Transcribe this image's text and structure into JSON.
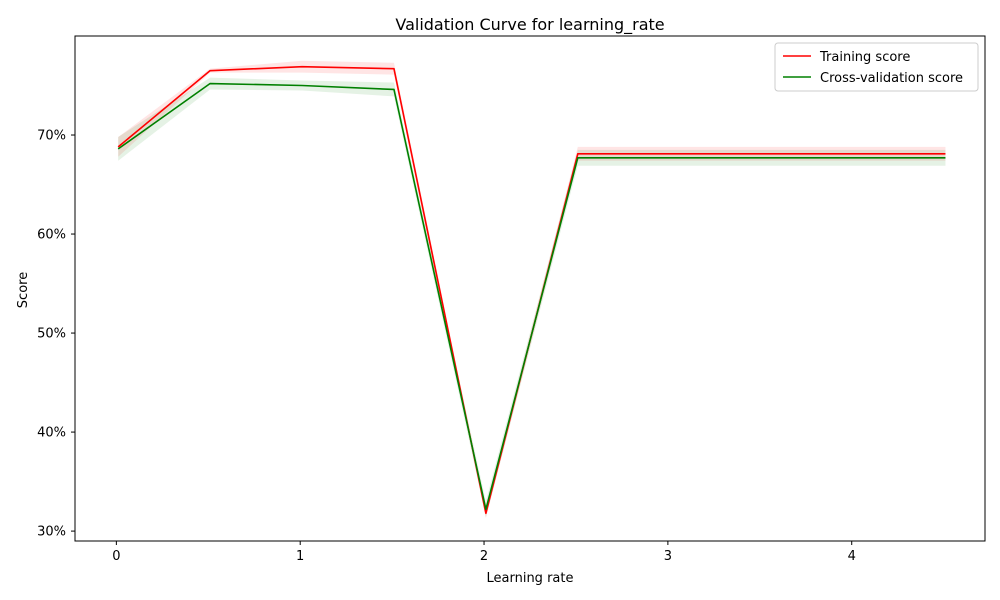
{
  "chart_data": {
    "type": "line",
    "title": "Validation Curve for learning_rate",
    "xlabel": "Learning rate",
    "ylabel": "Score",
    "xlim": [
      -0.225,
      4.725
    ],
    "ylim": [
      0.29,
      0.8
    ],
    "xticks": [
      0,
      1,
      2,
      3,
      4
    ],
    "xtick_labels": [
      "0",
      "1",
      "2",
      "3",
      "4"
    ],
    "yticks": [
      0.3,
      0.4,
      0.5,
      0.6,
      0.7
    ],
    "ytick_labels": [
      "30%",
      "40%",
      "50%",
      "60%",
      "70%"
    ],
    "x": [
      0.01,
      0.51,
      1.01,
      1.51,
      2.01,
      2.51,
      3.01,
      3.51,
      4.01,
      4.51
    ],
    "series": [
      {
        "name": "Training score",
        "color": "#ff0000",
        "values": [
          0.688,
          0.765,
          0.769,
          0.767,
          0.318,
          0.681,
          0.681,
          0.681,
          0.681,
          0.681
        ],
        "std": [
          0.01,
          0.002,
          0.006,
          0.006,
          0.005,
          0.007,
          0.007,
          0.007,
          0.007,
          0.007
        ]
      },
      {
        "name": "Cross-validation score",
        "color": "#008000",
        "values": [
          0.686,
          0.752,
          0.75,
          0.746,
          0.322,
          0.677,
          0.677,
          0.677,
          0.677,
          0.677
        ],
        "std": [
          0.012,
          0.006,
          0.005,
          0.007,
          0.008,
          0.008,
          0.008,
          0.008,
          0.008,
          0.008
        ]
      }
    ],
    "legend_position": "top-right",
    "grid": false
  }
}
